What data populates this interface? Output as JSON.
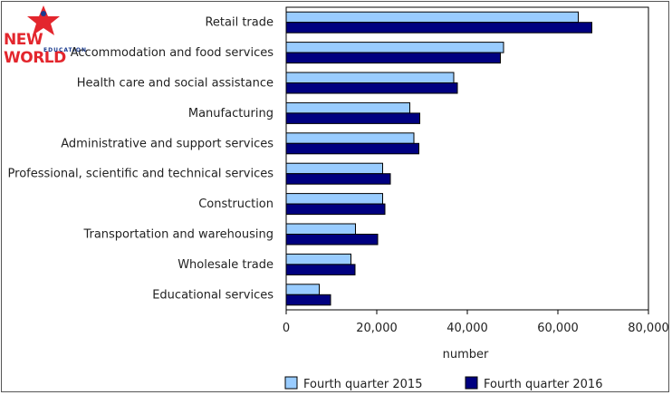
{
  "logo": {
    "text": "NEW WORLD",
    "subtext": "EDUCATION"
  },
  "colors": {
    "series_2015": "#99ccff",
    "series_2016": "#000080",
    "axis": "#000000",
    "text": "#222222"
  },
  "chart_data": {
    "type": "bar",
    "orientation": "horizontal",
    "categories": [
      "Retail trade",
      "Accommodation and food services",
      "Health care and social assistance",
      "Manufacturing",
      "Administrative and support services",
      "Professional, scientific and technical services",
      "Construction",
      "Transportation and warehousing",
      "Wholesale trade",
      "Educational services"
    ],
    "series": [
      {
        "name": "Fourth quarter 2015",
        "values": [
          64500,
          48000,
          37000,
          27300,
          28200,
          21300,
          21300,
          15300,
          14300,
          7300
        ]
      },
      {
        "name": "Fourth quarter 2016",
        "values": [
          67500,
          47300,
          37800,
          29500,
          29300,
          23000,
          21800,
          20200,
          15200,
          9800
        ]
      }
    ],
    "xlabel": "number",
    "xlim": [
      0,
      80000
    ],
    "xticks": [
      0,
      20000,
      40000,
      60000,
      80000
    ],
    "xtick_labels": [
      "0",
      "20,000",
      "40,000",
      "60,000",
      "80,000"
    ],
    "legend_position": "bottom",
    "grid": false
  }
}
